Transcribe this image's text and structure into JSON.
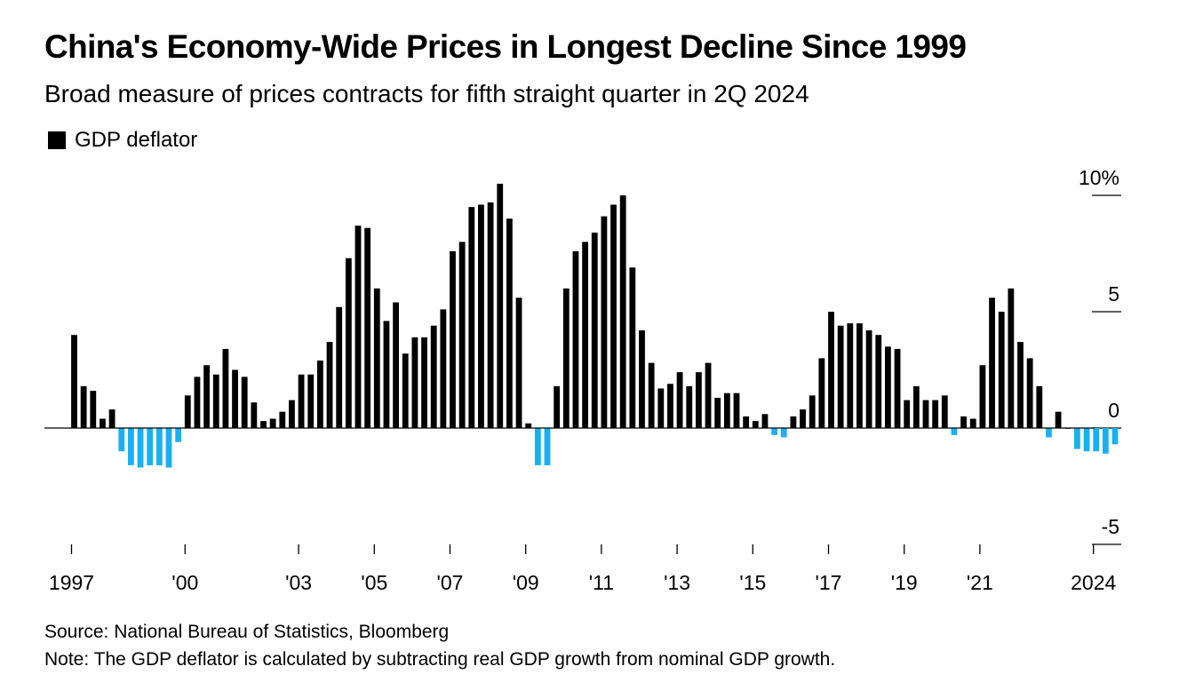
{
  "chart_data": {
    "type": "bar",
    "title": "China's Economy-Wide Prices in Longest Decline Since 1999",
    "subtitle": "Broad measure of prices contracts for fifth straight quarter in 2Q 2024",
    "legend": [
      {
        "name": "GDP deflator",
        "color": "#000000"
      }
    ],
    "legend_position": "top-left",
    "ylim": [
      -5,
      10
    ],
    "y_ticks": [
      {
        "value": 10,
        "label": "10%"
      },
      {
        "value": 5,
        "label": "5"
      },
      {
        "value": 0,
        "label": "0"
      },
      {
        "value": -5,
        "label": "-5"
      }
    ],
    "x_start": "1997Q1",
    "x_ticks": [
      {
        "year": 1997,
        "label": "1997"
      },
      {
        "year": 2000,
        "label": "'00"
      },
      {
        "year": 2003,
        "label": "'03"
      },
      {
        "year": 2005,
        "label": "'05"
      },
      {
        "year": 2007,
        "label": "'07"
      },
      {
        "year": 2009,
        "label": "'09"
      },
      {
        "year": 2011,
        "label": "'11"
      },
      {
        "year": 2013,
        "label": "'13"
      },
      {
        "year": 2015,
        "label": "'15"
      },
      {
        "year": 2017,
        "label": "'17"
      },
      {
        "year": 2019,
        "label": "'19"
      },
      {
        "year": 2021,
        "label": "'21"
      },
      {
        "year": 2024,
        "label": "2024"
      }
    ],
    "grid": false,
    "series": [
      {
        "name": "GDP deflator",
        "positive_color": "#000000",
        "negative_color": "#1ab0f0",
        "values": [
          4.0,
          1.8,
          1.6,
          0.4,
          0.8,
          -1.0,
          -1.6,
          -1.7,
          -1.6,
          -1.6,
          -1.7,
          -0.6,
          1.4,
          2.2,
          2.7,
          2.3,
          3.4,
          2.5,
          2.2,
          1.1,
          0.3,
          0.4,
          0.7,
          1.2,
          2.3,
          2.3,
          2.9,
          3.7,
          5.2,
          7.3,
          8.7,
          8.6,
          6.0,
          4.6,
          5.4,
          3.2,
          3.9,
          3.9,
          4.4,
          5.1,
          7.6,
          8.0,
          9.5,
          9.6,
          9.7,
          10.5,
          9.0,
          5.6,
          0.2,
          -1.6,
          -1.6,
          1.8,
          6.0,
          7.6,
          8.0,
          8.4,
          9.1,
          9.6,
          10.0,
          6.9,
          4.2,
          2.8,
          1.7,
          1.9,
          2.4,
          1.8,
          2.4,
          2.8,
          1.3,
          1.5,
          1.5,
          0.5,
          0.3,
          0.6,
          -0.3,
          -0.4,
          0.5,
          0.8,
          1.4,
          3.0,
          5.0,
          4.4,
          4.5,
          4.5,
          4.2,
          4.0,
          3.5,
          3.4,
          1.2,
          1.8,
          1.2,
          1.2,
          1.4,
          -0.3,
          0.5,
          0.4,
          2.7,
          5.6,
          5.0,
          6.0,
          3.7,
          3.0,
          1.8,
          -0.4,
          0.7,
          0.0,
          -0.9,
          -1.0,
          -1.0,
          -1.1,
          -0.7
        ]
      }
    ],
    "source": "Source: National Bureau of Statistics, Bloomberg",
    "note": "Note: The GDP deflator is calculated by subtracting real GDP growth from nominal GDP growth."
  }
}
